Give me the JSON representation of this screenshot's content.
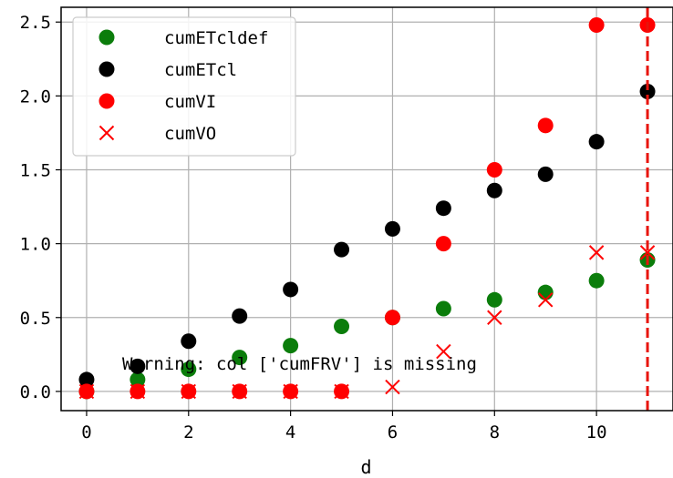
{
  "chart_data": {
    "type": "scatter",
    "xlabel": "d",
    "ylabel": "",
    "xlim": [
      -0.5,
      11.5
    ],
    "ylim": [
      -0.13,
      2.6
    ],
    "x_ticks": [
      0,
      2,
      4,
      6,
      8,
      10
    ],
    "x_tick_labels": [
      "0",
      "2",
      "4",
      "6",
      "8",
      "10"
    ],
    "y_ticks": [
      0.0,
      0.5,
      1.0,
      1.5,
      2.0,
      2.5
    ],
    "y_tick_labels": [
      "0.0",
      "0.5",
      "1.0",
      "1.5",
      "2.0",
      "2.5"
    ],
    "grid": true,
    "legend_placement": "upper-left",
    "vline": {
      "x": 11,
      "color": "#e8140c",
      "style": "dashed"
    },
    "annotation": "Warning: col ['cumFRV'] is missing",
    "series": [
      {
        "name": "cumETcldef",
        "marker": "circle",
        "color": "#0b7d0b",
        "x": [
          0,
          1,
          2,
          3,
          4,
          5,
          6,
          7,
          8,
          9,
          10,
          11
        ],
        "y": [
          0.0,
          0.08,
          0.15,
          0.23,
          0.31,
          0.44,
          0.5,
          0.56,
          0.62,
          0.67,
          0.75,
          0.89
        ]
      },
      {
        "name": "cumETcl",
        "marker": "circle",
        "color": "#000000",
        "x": [
          0,
          1,
          2,
          3,
          4,
          5,
          6,
          7,
          8,
          9,
          10,
          11
        ],
        "y": [
          0.08,
          0.17,
          0.34,
          0.51,
          0.69,
          0.96,
          1.1,
          1.24,
          1.36,
          1.47,
          1.69,
          2.03
        ]
      },
      {
        "name": "cumVI",
        "marker": "circle",
        "color": "#ff0000",
        "x": [
          0,
          1,
          2,
          3,
          4,
          5,
          6,
          7,
          8,
          9,
          10,
          11
        ],
        "y": [
          0.0,
          0.0,
          0.0,
          0.0,
          0.0,
          0.0,
          0.5,
          1.0,
          1.5,
          1.8,
          2.48,
          2.48
        ]
      },
      {
        "name": "cumVO",
        "marker": "x",
        "color": "#ff0000",
        "x": [
          0,
          1,
          2,
          3,
          4,
          5,
          6,
          7,
          8,
          9,
          10,
          11
        ],
        "y": [
          0.0,
          0.0,
          0.0,
          0.0,
          0.0,
          0.0,
          0.03,
          0.27,
          0.5,
          0.62,
          0.94,
          0.94
        ]
      }
    ]
  }
}
